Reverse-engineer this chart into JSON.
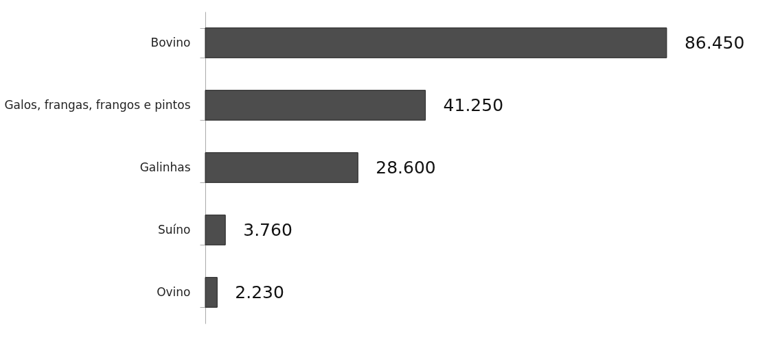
{
  "chart_data": {
    "type": "bar",
    "orientation": "horizontal",
    "categories": [
      "Bovino",
      "Galos, frangas, frangos e pintos",
      "Galinhas",
      "Suíno",
      "Ovino"
    ],
    "values": [
      86450,
      41250,
      28600,
      3760,
      2230
    ],
    "value_labels": [
      "86.450",
      "41.250",
      "28.600",
      "3.760",
      "2.230"
    ],
    "color": "#4d4d4d"
  }
}
